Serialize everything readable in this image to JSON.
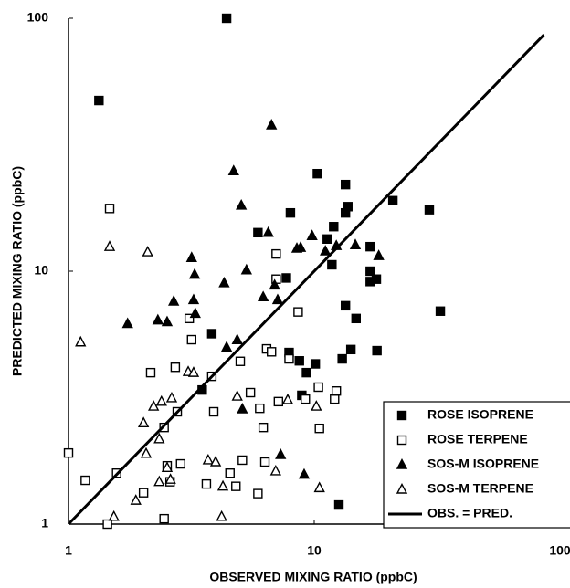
{
  "chart_data": {
    "type": "scatter",
    "x_label": "OBSERVED MIXING RATIO (ppbC)",
    "y_label": "PREDICTED MIXING RATIO (ppbC)",
    "xlim": [
      1,
      100
    ],
    "ylim": [
      1,
      100
    ],
    "xticks": [
      1,
      10,
      100
    ],
    "yticks": [
      1,
      10,
      100
    ],
    "xscale": "log",
    "yscale": "log",
    "legend": "lower right",
    "series": [
      {
        "name": "ROSE ISOPRENE",
        "color": "#000000",
        "marker": "square-filled",
        "x": [
          1.33,
          4.4,
          10.3,
          13.4,
          20.9,
          29.4,
          8,
          5.9,
          12,
          13.4,
          13.7,
          11.3,
          11.8,
          16.9,
          16.9,
          16.9,
          17.9,
          7.7,
          13.4,
          14.8,
          32.6,
          7.9,
          18,
          14.1,
          3.83,
          8.7,
          10.1,
          9.3,
          13,
          8.9,
          3.5,
          12.6
        ],
        "y": [
          47.3,
          100,
          24.3,
          22,
          19,
          17.5,
          17,
          14.2,
          15,
          17,
          18,
          13.4,
          10.6,
          12.5,
          10,
          9.1,
          9.3,
          9.4,
          7.3,
          6.5,
          6.95,
          4.77,
          4.85,
          4.9,
          5.66,
          4.42,
          4.3,
          3.97,
          4.5,
          3.23,
          3.39,
          1.19
        ]
      },
      {
        "name": "ROSE TERPENE",
        "color": "#000000",
        "marker": "square-open",
        "x": [
          1.47,
          7,
          7,
          8.6,
          3.1,
          3.17,
          6.4,
          6.7,
          7.9,
          5,
          2.16,
          2.72,
          3.83,
          5.5,
          7.15,
          9.2,
          12.1,
          12.3,
          10.4,
          3.9,
          2.77,
          6,
          6.2,
          10.5,
          2.45,
          1,
          1.17,
          1.57,
          2.02,
          2.52,
          2.86,
          2.59,
          3.64,
          5.1,
          4.54,
          6.3,
          5.9,
          4.8,
          1.44,
          2.45
        ],
        "y": [
          17.7,
          11.7,
          9.3,
          6.9,
          6.5,
          5.36,
          4.93,
          4.8,
          4.5,
          4.4,
          3.97,
          4.17,
          3.84,
          3.31,
          3.05,
          3.12,
          3.12,
          3.36,
          3.48,
          2.78,
          2.78,
          2.87,
          2.41,
          2.39,
          2.41,
          1.91,
          1.49,
          1.59,
          1.33,
          1.7,
          1.73,
          1.47,
          1.44,
          1.79,
          1.59,
          1.76,
          1.32,
          1.41,
          1,
          1.05
        ]
      },
      {
        "name": "SOS-M ISOPRENE",
        "color": "#000000",
        "marker": "triangle-filled",
        "x": [
          6.7,
          4.7,
          5.05,
          6.5,
          3.17,
          8.8,
          9.8,
          11.1,
          12.3,
          14.7,
          18.3,
          5.3,
          8.5,
          3.26,
          4.3,
          6.9,
          3.23,
          6.2,
          7.1,
          2.68,
          3.28,
          1.74,
          2.31,
          2.52,
          4.4,
          4.86,
          5.1,
          7.3,
          9.1
        ],
        "y": [
          37.8,
          24.9,
          18.2,
          14.2,
          11.3,
          12.4,
          13.8,
          12,
          12.6,
          12.7,
          11.5,
          10.1,
          12.3,
          9.7,
          8.98,
          8.8,
          7.7,
          7.9,
          7.7,
          7.6,
          6.8,
          6.2,
          6.4,
          6.3,
          5,
          5.35,
          2.85,
          1.88,
          1.57
        ]
      },
      {
        "name": "SOS-M TERPENE",
        "color": "#000000",
        "marker": "triangle-open",
        "x": [
          1.47,
          2.1,
          1.12,
          3.07,
          3.23,
          2.22,
          2.63,
          2.39,
          4.86,
          7.8,
          10.2,
          2.02,
          2.34,
          2.07,
          2.6,
          2.52,
          3.7,
          3.97,
          4.25,
          6.97,
          10.5,
          1.88,
          1.53,
          4.2,
          2.34
        ],
        "y": [
          12.5,
          11.9,
          5.24,
          4,
          3.97,
          2.92,
          3.15,
          3.05,
          3.2,
          3.1,
          2.92,
          2.51,
          2.17,
          1.9,
          1.5,
          1.67,
          1.79,
          1.76,
          1.41,
          1.62,
          1.39,
          1.24,
          1.07,
          1.07,
          1.47
        ]
      },
      {
        "name": "OBS. = PRED.",
        "color": "#000000",
        "marker": "line",
        "x": [
          1,
          86
        ],
        "y": [
          1,
          86
        ]
      }
    ]
  }
}
